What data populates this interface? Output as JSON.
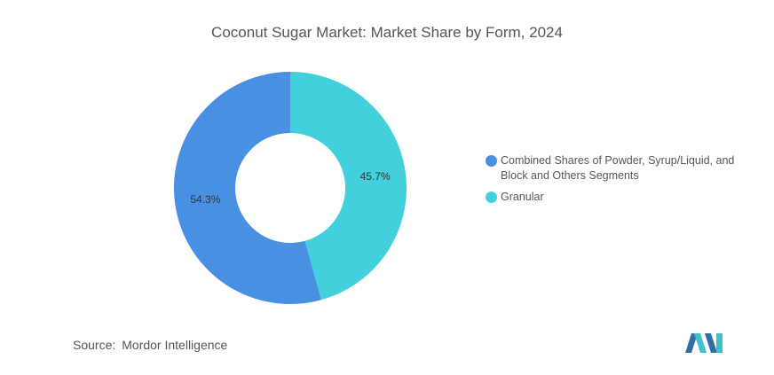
{
  "chart_data": {
    "type": "pie",
    "title": "Coconut Sugar Market: Market Share by Form, 2024",
    "donut": true,
    "series": [
      {
        "name": "Combined Shares of Powder, Syrup/Liquid, and Block and Others Segments",
        "value": 54.3,
        "label": "54.3%",
        "color": "#4a90e2"
      },
      {
        "name": "Granular",
        "value": 45.7,
        "label": "45.7%",
        "color": "#42d1dc"
      }
    ],
    "legend_position": "right"
  },
  "source": {
    "label": "Source:",
    "text": "Mordor Intelligence"
  },
  "logo": {
    "name": "mordor-intelligence-logo",
    "colors": [
      "#2f6fa3",
      "#3fc1c9"
    ]
  }
}
